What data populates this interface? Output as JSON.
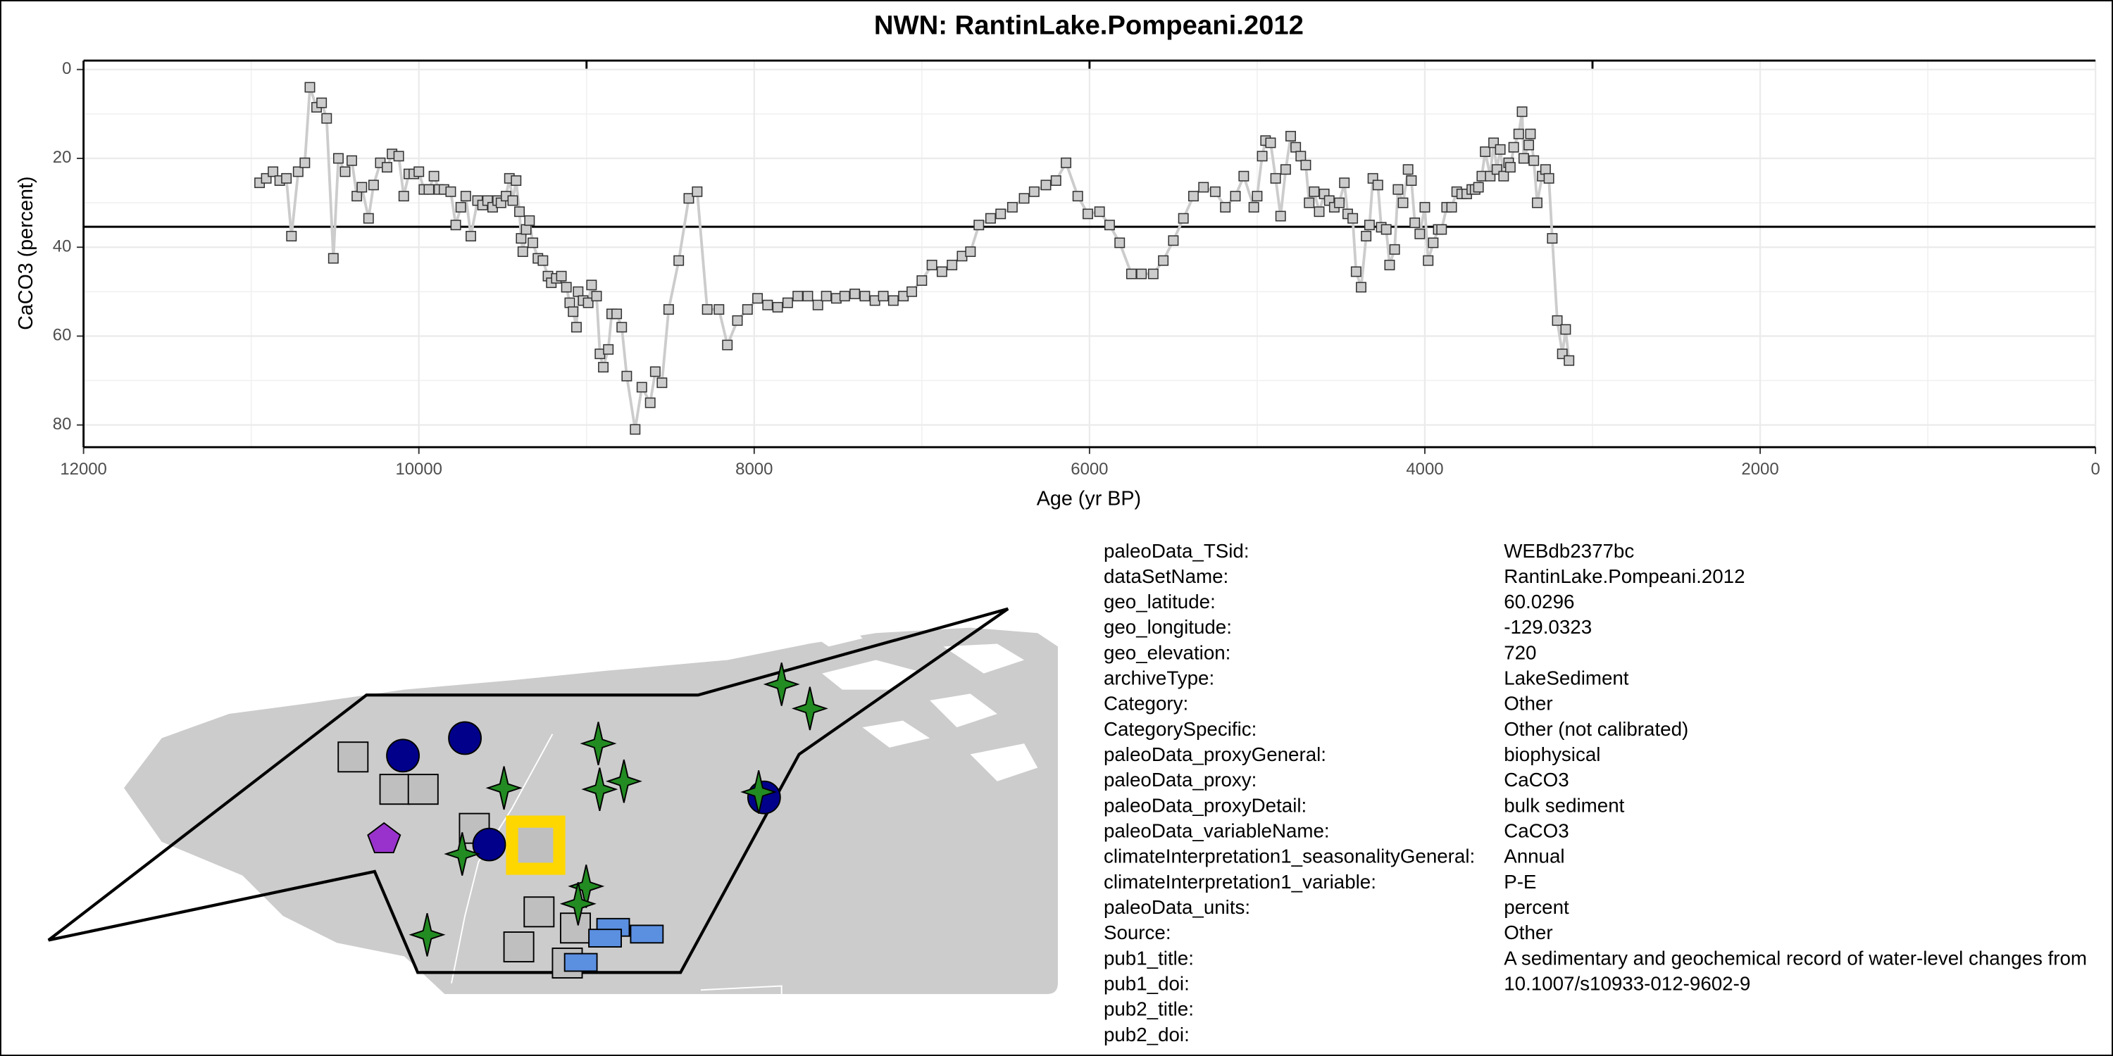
{
  "chart_data": {
    "type": "line",
    "title": "NWN: RantinLake.Pompeani.2012",
    "xlabel": "Age (yr BP)",
    "ylabel": "CaCO3 (percent)",
    "xlim": [
      12000,
      0
    ],
    "xticks": [
      12000,
      10000,
      8000,
      6000,
      4000,
      2000,
      0
    ],
    "x2ticks": [
      9000,
      6000,
      3000
    ],
    "ylim": [
      85,
      -2
    ],
    "yticks": [
      0,
      20,
      40,
      60,
      80
    ],
    "grid": true,
    "hline": 35.4,
    "line_color": "#cccccc",
    "marker_color": "#cccccc",
    "x": [
      10950,
      10910,
      10870,
      10830,
      10790,
      10760,
      10720,
      10680,
      10650,
      10610,
      10580,
      10550,
      10510,
      10480,
      10440,
      10400,
      10370,
      10340,
      10300,
      10270,
      10230,
      10190,
      10160,
      10120,
      10090,
      10060,
      10030,
      10000,
      9970,
      9940,
      9910,
      9880,
      9850,
      9810,
      9780,
      9750,
      9720,
      9690,
      9650,
      9620,
      9590,
      9560,
      9530,
      9510,
      9480,
      9460,
      9440,
      9420,
      9400,
      9390,
      9380,
      9360,
      9340,
      9320,
      9290,
      9260,
      9230,
      9210,
      9180,
      9150,
      9120,
      9100,
      9080,
      9060,
      9050,
      9020,
      8990,
      8970,
      8940,
      8920,
      8900,
      8870,
      8850,
      8820,
      8790,
      8760,
      8710,
      8670,
      8620,
      8590,
      8550,
      8510,
      8450,
      8390,
      8340,
      8280,
      8210,
      8160,
      8100,
      8040,
      7980,
      7920,
      7860,
      7800,
      7740,
      7680,
      7620,
      7570,
      7510,
      7460,
      7400,
      7340,
      7280,
      7230,
      7170,
      7110,
      7060,
      7000,
      6940,
      6880,
      6820,
      6760,
      6710,
      6660,
      6590,
      6530,
      6460,
      6390,
      6330,
      6260,
      6200,
      6140,
      6070,
      6010,
      5940,
      5880,
      5820,
      5750,
      5690,
      5620,
      5560,
      5500,
      5440,
      5380,
      5320,
      5250,
      5190,
      5130,
      5080,
      5020,
      5000,
      4970,
      4950,
      4920,
      4890,
      4860,
      4830,
      4800,
      4770,
      4740,
      4710,
      4690,
      4660,
      4630,
      4600,
      4570,
      4540,
      4510,
      4480,
      4460,
      4430,
      4410,
      4380,
      4350,
      4330,
      4310,
      4280,
      4260,
      4230,
      4210,
      4180,
      4160,
      4130,
      4100,
      4080,
      4060,
      4030,
      4000,
      3980,
      3950,
      3920,
      3900,
      3870,
      3840,
      3810,
      3780,
      3750,
      3720,
      3700,
      3680,
      3660,
      3640,
      3610,
      3590,
      3570,
      3550,
      3530,
      3500,
      3490,
      3470,
      3440,
      3420,
      3410,
      3380,
      3370,
      3350,
      3330,
      3300,
      3280,
      3260,
      3240,
      3210,
      3180,
      3160,
      3140
    ],
    "values": [
      25.5,
      24.5,
      23,
      25,
      24.5,
      37.5,
      23,
      21,
      4,
      8.5,
      7.5,
      11,
      42.5,
      20,
      23,
      20.5,
      28.5,
      26.5,
      33.5,
      26,
      21,
      22,
      19,
      19.5,
      28.5,
      23.5,
      23.5,
      23,
      27,
      27,
      24,
      27,
      27,
      27.5,
      35,
      31,
      28.5,
      37.5,
      29.5,
      30.5,
      29.5,
      31,
      29.5,
      30,
      28.5,
      24.5,
      29.5,
      25,
      32,
      38,
      41,
      36,
      34,
      39,
      42.5,
      43,
      46.5,
      48,
      47,
      46.5,
      49,
      52.5,
      54.5,
      58,
      50,
      52,
      52.5,
      48.5,
      51,
      64,
      67,
      63,
      55,
      55,
      58,
      69,
      81,
      71.5,
      75,
      68,
      70.5,
      54,
      43,
      29,
      27.5,
      54,
      54,
      62,
      56.5,
      54,
      51.5,
      53,
      53.5,
      52.5,
      51,
      51,
      53,
      51,
      51.5,
      51,
      50.5,
      51,
      52,
      51,
      52,
      51,
      50,
      47.5,
      44,
      45.5,
      44,
      42,
      41,
      35,
      33.5,
      32.5,
      31,
      29,
      27.5,
      26,
      25,
      21,
      28.5,
      32.5,
      32,
      35,
      39,
      46,
      46,
      46,
      43,
      38.5,
      33.5,
      28.5,
      26.5,
      27.5,
      31,
      28.5,
      24,
      31,
      28.5,
      19.5,
      16,
      16.5,
      24.5,
      33,
      22.5,
      15,
      17.5,
      19.5,
      21.5,
      30,
      27.5,
      32,
      28,
      29.5,
      31,
      30,
      25.5,
      32.5,
      33.5,
      45.5,
      49,
      37.5,
      35,
      24.5,
      26,
      35.5,
      36,
      44,
      40.5,
      27,
      30,
      22.5,
      25,
      34.5,
      37,
      31,
      43,
      39,
      36,
      36,
      31,
      31,
      27.5,
      28,
      28,
      27,
      27,
      26.5,
      24,
      18.5,
      24,
      16.5,
      22.5,
      18,
      24,
      21,
      22,
      17.5,
      14.5,
      9.5,
      20,
      17,
      14.5,
      20.5,
      30,
      24,
      22.5,
      24.5,
      38,
      56.5,
      64,
      58.5,
      65.5
    ]
  },
  "metadata": {
    "rows": [
      [
        "paleoData_TSid:",
        "WEBdb2377bc"
      ],
      [
        "dataSetName:",
        "RantinLake.Pompeani.2012"
      ],
      [
        "geo_latitude:",
        "60.0296"
      ],
      [
        "geo_longitude:",
        "-129.0323"
      ],
      [
        "geo_elevation:",
        "720"
      ],
      [
        "archiveType:",
        "LakeSediment"
      ],
      [
        "Category:",
        "Other"
      ],
      [
        "CategorySpecific:",
        "Other (not calibrated)"
      ],
      [
        "paleoData_proxyGeneral:",
        "biophysical"
      ],
      [
        "paleoData_proxy:",
        "CaCO3"
      ],
      [
        "paleoData_proxyDetail:",
        "bulk sediment"
      ],
      [
        "paleoData_variableName:",
        "CaCO3"
      ],
      [
        "climateInterpretation1_seasonalityGeneral:",
        "Annual"
      ],
      [
        "climateInterpretation1_variable:",
        "P-E"
      ],
      [
        "paleoData_units:",
        "percent"
      ],
      [
        "Source:",
        "Other"
      ],
      [
        "pub1_title:",
        "A sedimentary and geochemical record of water-level changes from"
      ],
      [
        "pub1_doi:",
        "10.1007/s10933-012-9602-9"
      ],
      [
        "pub2_title:"
      ],
      [
        "pub2_doi:"
      ]
    ]
  }
}
